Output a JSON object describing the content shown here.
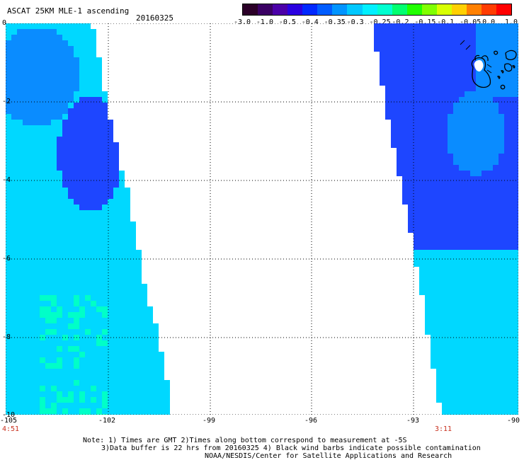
{
  "header": {
    "title": "ASCAT 25KM MLE-1 ascending",
    "date": "20160325"
  },
  "colorbar": {
    "colors": [
      "#2b0028",
      "#3a0063",
      "#4b00a8",
      "#2a00e0",
      "#0028ff",
      "#005cff",
      "#0094ff",
      "#00c8ff",
      "#00f0ff",
      "#00ffd0",
      "#00ff70",
      "#20ff00",
      "#80ff00",
      "#d8ff00",
      "#ffd000",
      "#ff8000",
      "#ff3c00",
      "#ff0000"
    ],
    "labels": [
      "-3.0",
      "-1.0",
      "-0.5",
      "-0.4",
      "-0.35",
      "-0.3",
      "-0.25",
      "-0.2",
      "-0.15",
      "-0.1",
      "-0.05",
      "0.0",
      "1.0"
    ]
  },
  "axes": {
    "y_labels": [
      "0",
      "-2",
      "-4",
      "-6",
      "-8",
      "-10"
    ],
    "x_labels": [
      "-105",
      "-102",
      "-99",
      "-96",
      "-93",
      "-90"
    ]
  },
  "times": {
    "left": "4:51",
    "right": "3:11"
  },
  "notes": {
    "line1": "Note: 1) Times are GMT 2)Times along bottom correspond to measurement at -5S",
    "line2": "3)Data buffer is 22 hrs from 20160325 4) Black wind barbs indicate possible contamination",
    "line3": "NOAA/NESDIS/Center for Satellite Applications and Research"
  }
}
